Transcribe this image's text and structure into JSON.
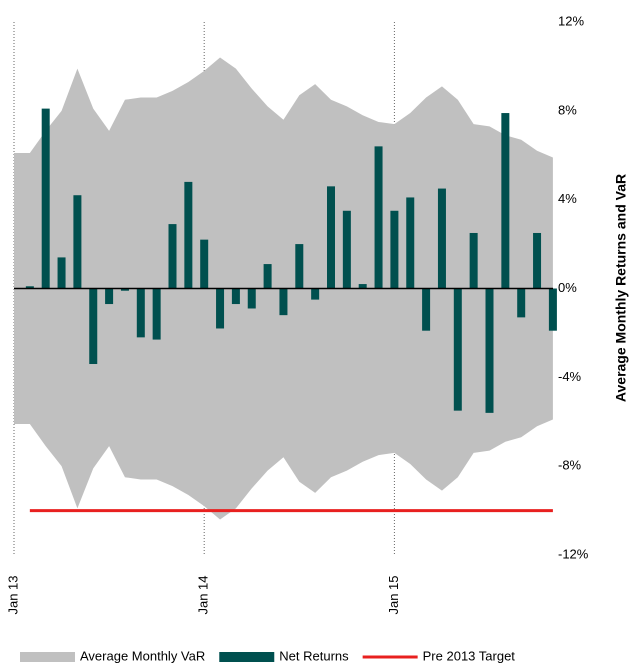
{
  "chart_data": {
    "type": "bar",
    "y_label": "Average Monthly Returns and VaR",
    "categories": [
      "Jan 13",
      null,
      null,
      null,
      null,
      null,
      null,
      null,
      null,
      null,
      null,
      null,
      "Jan 14",
      null,
      null,
      null,
      null,
      null,
      null,
      null,
      null,
      null,
      null,
      null,
      "Jan 15",
      null,
      null,
      null,
      null,
      null,
      null,
      null,
      null,
      null,
      null
    ],
    "series": [
      {
        "name": "Average Monthly VaR",
        "kind": "area",
        "color": "#c0c0c0",
        "upper": [
          6.1,
          6.1,
          7.1,
          8.0,
          9.9,
          8.1,
          7.1,
          8.5,
          8.6,
          8.6,
          8.9,
          9.3,
          9.8,
          10.4,
          9.9,
          9.0,
          8.2,
          7.6,
          8.7,
          9.2,
          8.5,
          8.2,
          7.8,
          7.5,
          7.4,
          7.9,
          8.6,
          9.1,
          8.5,
          7.4,
          7.3,
          6.9,
          6.7,
          6.2,
          5.9
        ],
        "lower": [
          -6.1,
          -6.1,
          -7.1,
          -8.0,
          -9.9,
          -8.1,
          -7.1,
          -8.5,
          -8.6,
          -8.6,
          -8.9,
          -9.3,
          -9.8,
          -10.4,
          -9.9,
          -9.0,
          -8.2,
          -7.6,
          -8.7,
          -9.2,
          -8.5,
          -8.2,
          -7.8,
          -7.5,
          -7.4,
          -7.9,
          -8.6,
          -9.1,
          -8.5,
          -7.4,
          -7.3,
          -6.9,
          -6.7,
          -6.2,
          -5.9
        ]
      },
      {
        "name": "Net Returns",
        "kind": "bar",
        "color": "#00504f",
        "values": [
          0,
          0.1,
          8.1,
          1.4,
          4.2,
          -3.4,
          -0.7,
          -0.1,
          -2.2,
          -2.3,
          2.9,
          4.8,
          2.2,
          -1.8,
          -0.7,
          -0.9,
          1.1,
          -1.2,
          2.0,
          -0.5,
          4.6,
          3.5,
          0.2,
          6.4,
          3.5,
          4.1,
          -1.9,
          4.5,
          -5.5,
          2.5,
          -5.6,
          7.9,
          -1.3,
          2.5,
          -1.9
        ]
      },
      {
        "name": "Pre 2013 Target",
        "kind": "line",
        "color": "#e8201f",
        "values": [
          null,
          -10,
          -10,
          -10,
          -10,
          -10,
          -10,
          -10,
          -10,
          -10,
          -10,
          -10,
          -10,
          -10,
          -10,
          -10,
          -10,
          -10,
          -10,
          -10,
          -10,
          -10,
          -10,
          -10,
          -10,
          -10,
          -10,
          -10,
          -10,
          -10,
          -10,
          -10,
          -10,
          -10,
          -10
        ]
      }
    ],
    "ylim": [
      -12,
      12
    ],
    "yticks": [
      {
        "value": -12,
        "label": "-12%"
      },
      {
        "value": -8,
        "label": "-8%"
      },
      {
        "value": -4,
        "label": "-4%"
      },
      {
        "value": 0,
        "label": "0%"
      },
      {
        "value": 4,
        "label": "4%"
      },
      {
        "value": 8,
        "label": "8%"
      },
      {
        "value": 12,
        "label": "12%"
      }
    ],
    "grid": true
  }
}
